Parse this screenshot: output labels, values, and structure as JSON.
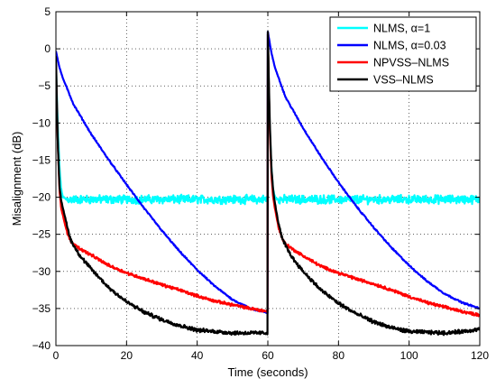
{
  "chart_data": {
    "type": "line",
    "title": "",
    "xlabel": "Time (seconds)",
    "ylabel": "Misalignment (dB)",
    "xlim": [
      0,
      120
    ],
    "ylim": [
      -40,
      5
    ],
    "x_ticks": [
      0,
      20,
      40,
      60,
      80,
      100,
      120
    ],
    "y_ticks": [
      5,
      0,
      -5,
      -10,
      -15,
      -20,
      -25,
      -30,
      -35,
      -40
    ],
    "x_tick_labels": [
      "0",
      "20",
      "40",
      "60",
      "80",
      "100",
      "120"
    ],
    "y_tick_labels": [
      "5",
      "0",
      "−5",
      "−10",
      "−15",
      "−20",
      "−25",
      "−30",
      "−35",
      "−40"
    ],
    "grid": "dotted",
    "legend_position": "top-right",
    "series": [
      {
        "name": "NLMS, α=1",
        "color": "#00ffff",
        "noise": 0.45,
        "x": [
          0,
          0.5,
          1,
          1.5,
          2,
          3,
          5,
          10,
          20,
          30,
          40,
          50,
          59.9,
          60,
          60.5,
          61,
          61.5,
          62,
          63,
          65,
          70,
          80,
          90,
          100,
          110,
          120
        ],
        "y": [
          -2,
          -10,
          -16,
          -19,
          -20,
          -20.3,
          -20.3,
          -20.3,
          -20.3,
          -20.3,
          -20.3,
          -20.3,
          -20.3,
          2,
          -10,
          -16,
          -19,
          -20,
          -20.3,
          -20.3,
          -20.3,
          -20.3,
          -20.3,
          -20.3,
          -20.3,
          -20.3
        ]
      },
      {
        "name": "NLMS, α=0.03",
        "color": "#0000ff",
        "noise": 0.08,
        "x": [
          0,
          1,
          2,
          5,
          10,
          15,
          20,
          25,
          30,
          35,
          40,
          45,
          50,
          55,
          59.9,
          60,
          61,
          62,
          65,
          70,
          75,
          80,
          85,
          90,
          95,
          100,
          105,
          110,
          115,
          120
        ],
        "y": [
          -0.3,
          -2.5,
          -4,
          -7.5,
          -11.5,
          -15,
          -18.3,
          -21.5,
          -24.5,
          -27.3,
          -29.8,
          -32,
          -33.8,
          -35,
          -35.6,
          2.3,
          -0.5,
          -2.5,
          -6.5,
          -10.7,
          -14.5,
          -18,
          -21.2,
          -24.1,
          -26.8,
          -29.2,
          -31.3,
          -33,
          -34.2,
          -35
        ]
      },
      {
        "name": "NPVSS–NLMS",
        "color": "#ff0000",
        "noise": 0.15,
        "x": [
          0,
          0.5,
          1,
          1.5,
          2,
          3,
          4,
          5,
          7,
          10,
          15,
          20,
          25,
          30,
          35,
          40,
          45,
          50,
          55,
          59.9,
          60,
          60.5,
          61,
          61.5,
          62,
          63,
          64,
          65,
          67,
          70,
          75,
          80,
          85,
          90,
          95,
          100,
          105,
          110,
          115,
          120
        ],
        "y": [
          -2,
          -12,
          -19,
          -21.5,
          -22.5,
          -24.5,
          -25.8,
          -26.3,
          -27,
          -27.8,
          -29.2,
          -30.2,
          -31,
          -31.8,
          -32.5,
          -33.3,
          -34,
          -34.5,
          -35,
          -35.4,
          2,
          -10,
          -17,
          -20,
          -21.5,
          -24,
          -25.5,
          -26.3,
          -27,
          -27.9,
          -29.3,
          -30.2,
          -31,
          -31.7,
          -32.5,
          -33.4,
          -34.2,
          -34.8,
          -35.4,
          -35.9
        ]
      },
      {
        "name": "VSS–NLMS",
        "color": "#000000",
        "noise": 0.2,
        "x": [
          0,
          0.5,
          1,
          1.5,
          2,
          3,
          4,
          5,
          7,
          10,
          15,
          20,
          25,
          30,
          35,
          40,
          45,
          50,
          55,
          59.9,
          60,
          60.5,
          61,
          61.5,
          62,
          63,
          64,
          65,
          67,
          70,
          75,
          80,
          85,
          90,
          95,
          100,
          105,
          110,
          115,
          120
        ],
        "y": [
          -1,
          -12,
          -18.5,
          -20.5,
          -21.5,
          -23.5,
          -25.5,
          -26.5,
          -28,
          -29.7,
          -32.2,
          -34.1,
          -35.5,
          -36.5,
          -37.3,
          -37.9,
          -38.1,
          -38.3,
          -38.3,
          -38.3,
          2.3,
          -9,
          -16,
          -19,
          -20.8,
          -23.5,
          -25.5,
          -26.5,
          -28.2,
          -30,
          -32.5,
          -34.3,
          -35.7,
          -36.8,
          -37.6,
          -38.1,
          -38.2,
          -38.3,
          -38.1,
          -37.8
        ]
      }
    ]
  }
}
